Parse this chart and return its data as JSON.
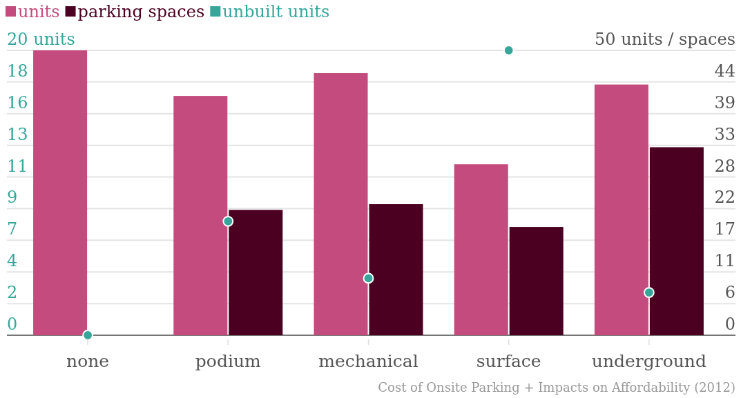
{
  "chart_data": {
    "type": "bar",
    "categories": [
      "none",
      "podium",
      "mechanical",
      "surface",
      "underground"
    ],
    "series": [
      {
        "name": "units",
        "color": "#c44b7e",
        "axis": "y2",
        "values": [
          50,
          42,
          46,
          30,
          44
        ]
      },
      {
        "name": "parking spaces",
        "color": "#4b0021",
        "axis": "y2",
        "values": [
          0,
          22,
          23,
          19,
          33
        ]
      },
      {
        "name": "unbuilt units",
        "color": "#36a69a",
        "type": "scatter",
        "axis": "y",
        "values": [
          0,
          8,
          4,
          20,
          3
        ]
      }
    ],
    "ylim": [
      0,
      20
    ],
    "yticks": [
      0,
      {
        "value": 2.22,
        "label": "2"
      },
      {
        "value": 4.44,
        "label": "4"
      },
      {
        "value": 6.67,
        "label": "7"
      },
      {
        "value": 8.89,
        "label": "9"
      },
      {
        "value": 11.11,
        "label": "11"
      },
      {
        "value": 13.33,
        "label": "13"
      },
      {
        "value": 15.56,
        "label": "16"
      },
      {
        "value": 17.78,
        "label": "18"
      },
      {
        "value": 20,
        "label": "20 units"
      }
    ],
    "y2lim": [
      0,
      50
    ],
    "y2ticks": [
      0,
      {
        "value": 5.56,
        "label": "6"
      },
      {
        "value": 11.11,
        "label": "11"
      },
      {
        "value": 16.67,
        "label": "17"
      },
      {
        "value": 22.22,
        "label": "22"
      },
      {
        "value": 27.78,
        "label": "28"
      },
      {
        "value": 33.33,
        "label": "33"
      },
      {
        "value": 38.89,
        "label": "39"
      },
      {
        "value": 44.44,
        "label": "44"
      },
      {
        "value": 50,
        "label": "50 units / spaces"
      }
    ],
    "grid": true,
    "legend": "top left",
    "marker": "circle",
    "annotations": [
      "Cost of Onsite Parking + Impacts on Affordability (2012)"
    ]
  }
}
